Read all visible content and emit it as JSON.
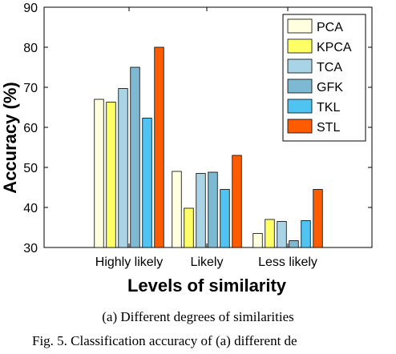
{
  "chart_data": {
    "type": "bar",
    "categories": [
      "Highly likely",
      "Likely",
      "Less likely"
    ],
    "series": [
      {
        "name": "PCA",
        "color": "#ffffe0",
        "values": [
          67.0,
          49.0,
          33.5
        ]
      },
      {
        "name": "KPCA",
        "color": "#ffff66",
        "values": [
          66.3,
          39.8,
          37.0
        ]
      },
      {
        "name": "TCA",
        "color": "#a9d4e6",
        "values": [
          69.7,
          48.5,
          36.5
        ]
      },
      {
        "name": "GFK",
        "color": "#7db9d2",
        "values": [
          75.0,
          48.8,
          31.7
        ]
      },
      {
        "name": "TKL",
        "color": "#4fc3f2",
        "values": [
          62.3,
          44.5,
          36.7
        ]
      },
      {
        "name": "STL",
        "color": "#ff5c00",
        "values": [
          80.0,
          53.0,
          44.5
        ]
      }
    ],
    "xlabel": "Levels of similarity",
    "ylabel": "Accuracy (%)",
    "ylim": [
      30,
      90
    ],
    "yticks": [
      30,
      40,
      50,
      60,
      70,
      80,
      90
    ],
    "grid": false,
    "legend_position": "top-right"
  },
  "captions": {
    "sub": "(a) Different degrees of similarities",
    "figure": "Fig. 5.  Classification accuracy of (a) different de"
  }
}
